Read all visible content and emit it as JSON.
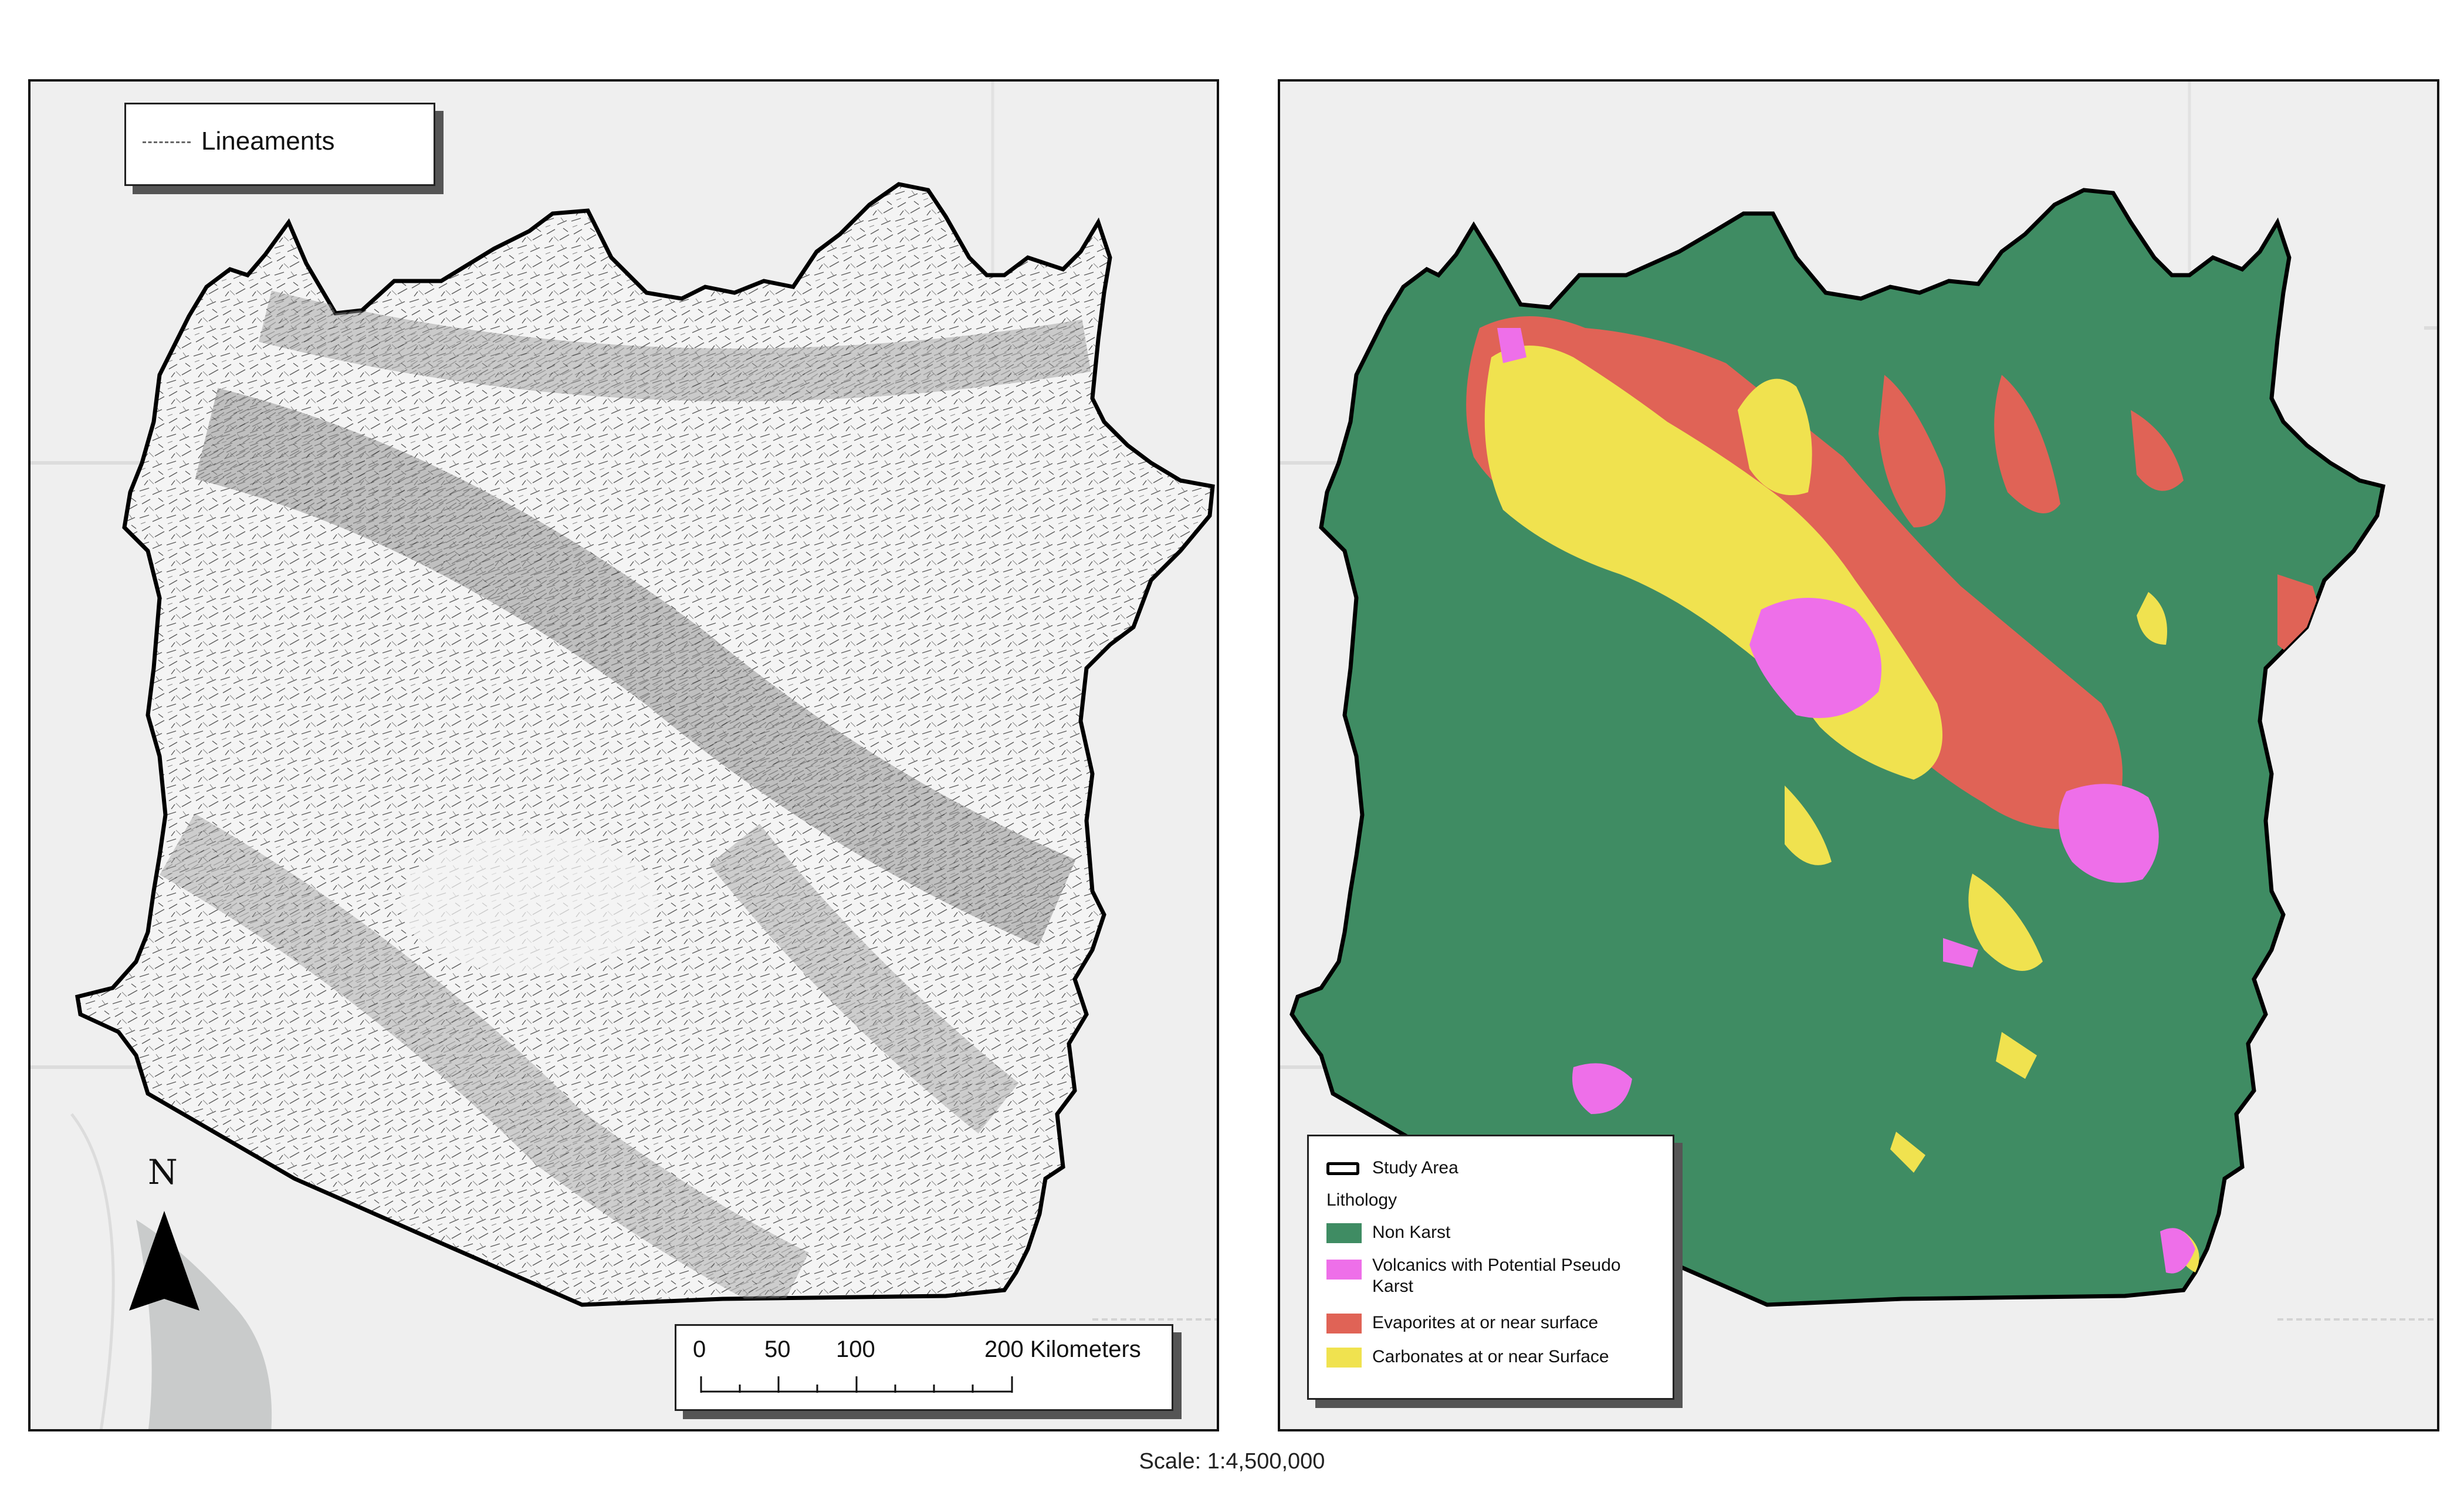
{
  "left_map": {
    "legend": {
      "label": "Lineaments"
    },
    "north_arrow": {
      "label": "N"
    },
    "scale_bar": {
      "ticks": [
        "0",
        "50",
        "100",
        "200 Kilometers"
      ]
    }
  },
  "right_map": {
    "legend": {
      "study_area": "Study Area",
      "heading": "Lithology",
      "items": [
        {
          "label": "Non Karst",
          "color": "#3f8c63"
        },
        {
          "label": "Volcanics with Potential Pseudo Karst",
          "color": "#ee6fe9"
        },
        {
          "label": "Evaporites at or near surface",
          "color": "#e06356"
        },
        {
          "label": "Carbonates at or near Surface",
          "color": "#f0e24f"
        }
      ]
    }
  },
  "scale_text": "Scale: 1:4,500,000"
}
